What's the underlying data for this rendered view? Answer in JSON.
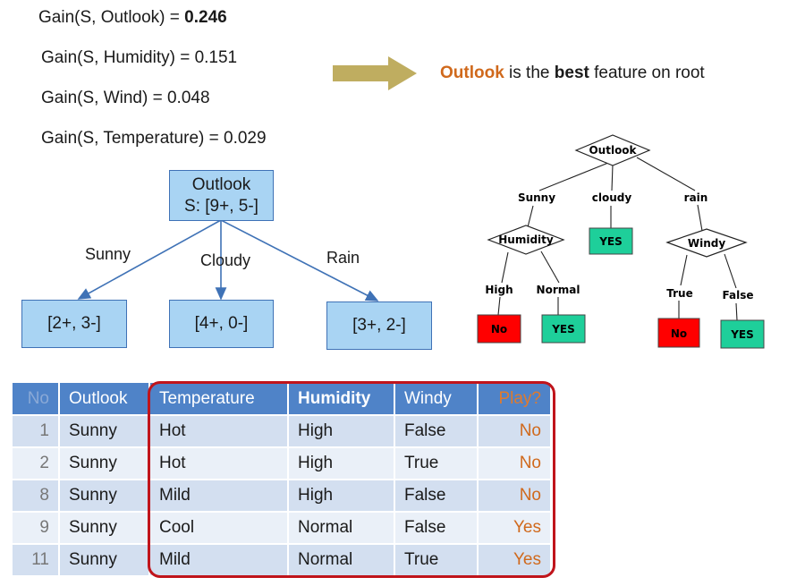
{
  "gains": [
    {
      "prefix": "Gain(S, Outlook) = ",
      "value": "0.246",
      "bold": true
    },
    {
      "prefix": "Gain(S, Humidity) = ",
      "value": "0.151",
      "bold": false
    },
    {
      "prefix": "Gain(S, Wind) = ",
      "value": "0.048",
      "bold": false
    },
    {
      "prefix": "Gain(S, Temperature) = ",
      "value": "0.029",
      "bold": false
    }
  ],
  "conclusion": {
    "feature": "Outlook",
    "text1": " is the ",
    "best": "best",
    "text2": " feature on root"
  },
  "split": {
    "root_line1": "Outlook",
    "root_line2": "S: [9+, 5-]",
    "branches": [
      "Sunny",
      "Cloudy",
      "Rain"
    ],
    "children": [
      "[2+, 3-]",
      "[4+, 0-]",
      "[3+, 2-]"
    ]
  },
  "tree": {
    "root": "Outlook",
    "branches": [
      "Sunny",
      "cloudy",
      "rain"
    ],
    "humidity": "Humidity",
    "windy": "Windy",
    "humidity_branches": [
      "High",
      "Normal"
    ],
    "windy_branches": [
      "True",
      "False"
    ],
    "leaves": {
      "cloudy": "YES",
      "high": "No",
      "normal": "YES",
      "true": "No",
      "false": "YES"
    }
  },
  "colors": {
    "arrow": "#bfad60",
    "box_fill": "#a9d4f3",
    "box_border": "#3f72b6",
    "leaf_yes": "#1ecf9a",
    "leaf_no": "#ff0000",
    "frame": "#c0141b",
    "accent_orange": "#d0691c"
  },
  "table": {
    "headers": [
      "No",
      "Outlook",
      "Temperature",
      "Humidity",
      "Windy",
      "Play?"
    ],
    "rows": [
      [
        "1",
        "Sunny",
        "Hot",
        "High",
        "False",
        "No"
      ],
      [
        "2",
        "Sunny",
        "Hot",
        "High",
        "True",
        "No"
      ],
      [
        "8",
        "Sunny",
        "Mild",
        "High",
        "False",
        "No"
      ],
      [
        "9",
        "Sunny",
        "Cool",
        "Normal",
        "False",
        "Yes"
      ],
      [
        "11",
        "Sunny",
        "Mild",
        "Normal",
        "True",
        "Yes"
      ]
    ]
  }
}
